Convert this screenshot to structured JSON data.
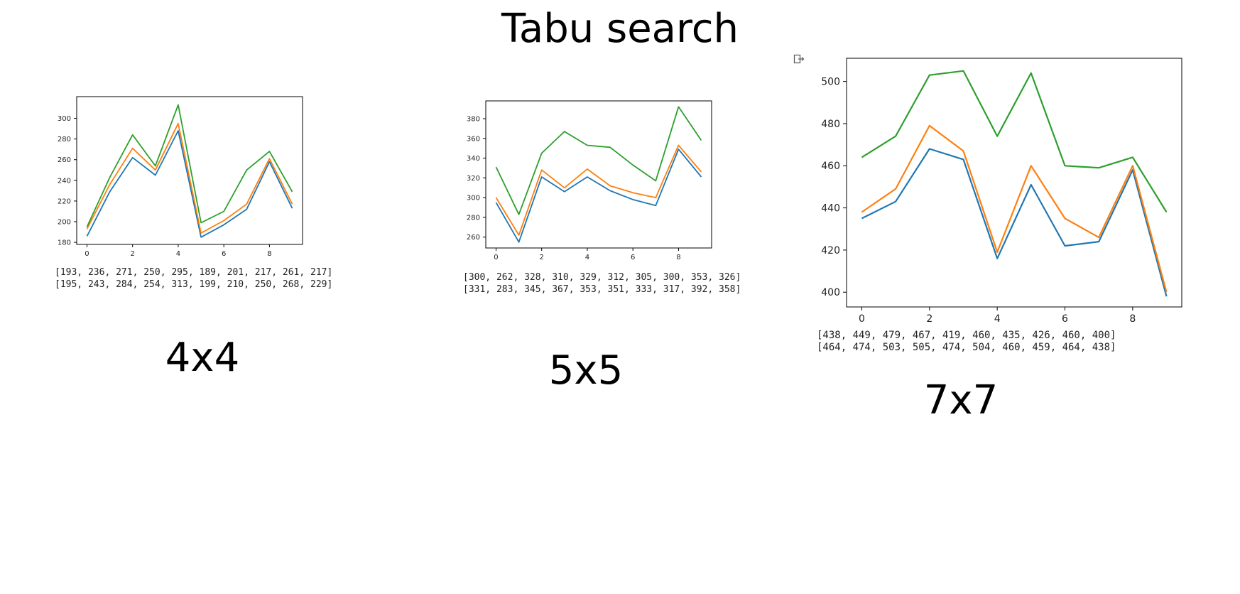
{
  "title": "Tabu search",
  "colors": {
    "series_1": "#1f77b4",
    "series_2": "#ff7f0e",
    "series_3": "#2ca02c",
    "axes": "#000000",
    "text": "#222222"
  },
  "icons": {
    "export": "export-icon"
  },
  "panels": [
    {
      "caption": "4x4",
      "printed": [
        "[193, 236, 271, 250, 295, 189, 201, 217, 261, 217]",
        "[195, 243, 284, 254, 313, 199, 210, 250, 268, 229]"
      ]
    },
    {
      "caption": "5x5",
      "printed": [
        "[300, 262, 328, 310, 329, 312, 305, 300, 353, 326]",
        "[331, 283, 345, 367, 353, 351, 333, 317, 392, 358]"
      ]
    },
    {
      "caption": "7x7",
      "printed": [
        "[438, 449, 479, 467, 419, 460, 435, 426, 460, 400]",
        "[464, 474, 503, 505, 474, 504, 460, 459, 464, 438]"
      ]
    }
  ],
  "chart_data": [
    {
      "type": "line",
      "x": [
        0,
        1,
        2,
        3,
        4,
        5,
        6,
        7,
        8,
        9
      ],
      "xticks": [
        0,
        2,
        4,
        6,
        8
      ],
      "yticks": [
        180,
        200,
        220,
        240,
        260,
        280,
        300
      ],
      "xlim": [
        -0.45,
        9.45
      ],
      "ylim": [
        178,
        321
      ],
      "grid": false,
      "series": [
        {
          "values": [
            186,
            229,
            262,
            245,
            288,
            185,
            197,
            212,
            258,
            213
          ]
        },
        {
          "values": [
            193,
            236,
            271,
            250,
            295,
            189,
            201,
            217,
            261,
            217
          ]
        },
        {
          "values": [
            195,
            243,
            284,
            254,
            313,
            199,
            210,
            250,
            268,
            229
          ]
        }
      ]
    },
    {
      "type": "line",
      "x": [
        0,
        1,
        2,
        3,
        4,
        5,
        6,
        7,
        8,
        9
      ],
      "xticks": [
        0,
        2,
        4,
        6,
        8
      ],
      "yticks": [
        260,
        280,
        300,
        320,
        340,
        360,
        380
      ],
      "xlim": [
        -0.45,
        9.45
      ],
      "ylim": [
        249,
        398
      ],
      "grid": false,
      "series": [
        {
          "values": [
            295,
            255,
            321,
            306,
            321,
            307,
            298,
            292,
            349,
            321
          ]
        },
        {
          "values": [
            300,
            262,
            328,
            310,
            329,
            312,
            305,
            300,
            353,
            326
          ]
        },
        {
          "values": [
            331,
            283,
            345,
            367,
            353,
            351,
            333,
            317,
            392,
            358
          ]
        }
      ]
    },
    {
      "type": "line",
      "x": [
        0,
        1,
        2,
        3,
        4,
        5,
        6,
        7,
        8,
        9
      ],
      "xticks": [
        0,
        2,
        4,
        6,
        8
      ],
      "yticks": [
        400,
        420,
        440,
        460,
        480,
        500
      ],
      "xlim": [
        -0.45,
        9.45
      ],
      "ylim": [
        393,
        511
      ],
      "grid": false,
      "series": [
        {
          "values": [
            435,
            443,
            468,
            463,
            416,
            451,
            422,
            424,
            458,
            398
          ]
        },
        {
          "values": [
            438,
            449,
            479,
            467,
            419,
            460,
            435,
            426,
            460,
            400
          ]
        },
        {
          "values": [
            464,
            474,
            503,
            505,
            474,
            504,
            460,
            459,
            464,
            438
          ]
        }
      ]
    }
  ]
}
